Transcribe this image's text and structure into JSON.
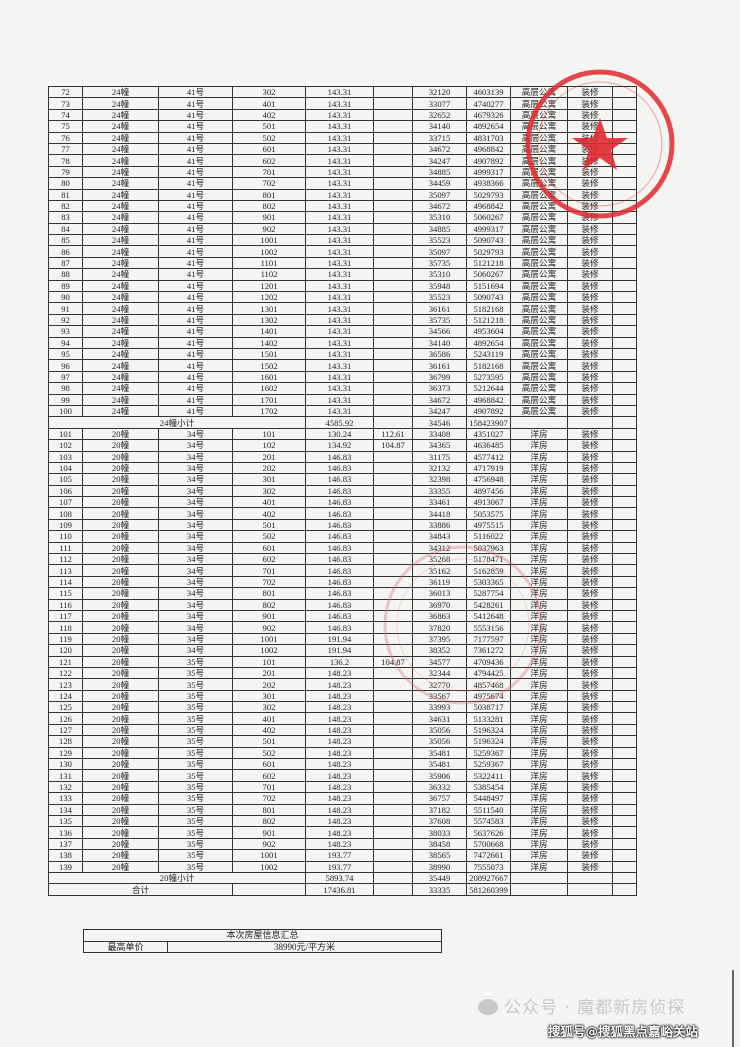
{
  "table": {
    "rows": [
      [
        "72",
        "24幢",
        "41号",
        "302",
        "143.31",
        "",
        "32120",
        "4603139",
        "高层公寓",
        "装修",
        ""
      ],
      [
        "73",
        "24幢",
        "41号",
        "401",
        "143.31",
        "",
        "33077",
        "4740277",
        "高层公寓",
        "装修",
        ""
      ],
      [
        "74",
        "24幢",
        "41号",
        "402",
        "143.31",
        "",
        "32652",
        "4679326",
        "高层公寓",
        "装修",
        ""
      ],
      [
        "75",
        "24幢",
        "41号",
        "501",
        "143.31",
        "",
        "34140",
        "4892654",
        "高层公寓",
        "装修",
        ""
      ],
      [
        "76",
        "24幢",
        "41号",
        "502",
        "143.31",
        "",
        "33715",
        "4831703",
        "高层公寓",
        "装修",
        ""
      ],
      [
        "77",
        "24幢",
        "41号",
        "601",
        "143.31",
        "",
        "34672",
        "4968842",
        "高层公寓",
        "装修",
        ""
      ],
      [
        "78",
        "24幢",
        "41号",
        "602",
        "143.31",
        "",
        "34247",
        "4907892",
        "高层公寓",
        "装修",
        ""
      ],
      [
        "79",
        "24幢",
        "41号",
        "701",
        "143.31",
        "",
        "34885",
        "4999317",
        "高层公寓",
        "装修",
        ""
      ],
      [
        "80",
        "24幢",
        "41号",
        "702",
        "143.31",
        "",
        "34459",
        "4938366",
        "高层公寓",
        "装修",
        ""
      ],
      [
        "81",
        "24幢",
        "41号",
        "801",
        "143.31",
        "",
        "35097",
        "5029793",
        "高层公寓",
        "装修",
        ""
      ],
      [
        "82",
        "24幢",
        "41号",
        "802",
        "143.31",
        "",
        "34672",
        "4968842",
        "高层公寓",
        "装修",
        ""
      ],
      [
        "83",
        "24幢",
        "41号",
        "901",
        "143.31",
        "",
        "35310",
        "5060267",
        "高层公寓",
        "装修",
        ""
      ],
      [
        "84",
        "24幢",
        "41号",
        "902",
        "143.31",
        "",
        "34885",
        "4999317",
        "高层公寓",
        "装修",
        ""
      ],
      [
        "85",
        "24幢",
        "41号",
        "1001",
        "143.31",
        "",
        "35523",
        "5090743",
        "高层公寓",
        "装修",
        ""
      ],
      [
        "86",
        "24幢",
        "41号",
        "1002",
        "143.31",
        "",
        "35097",
        "5029793",
        "高层公寓",
        "装修",
        ""
      ],
      [
        "87",
        "24幢",
        "41号",
        "1101",
        "143.31",
        "",
        "35735",
        "5121218",
        "高层公寓",
        "装修",
        ""
      ],
      [
        "88",
        "24幢",
        "41号",
        "1102",
        "143.31",
        "",
        "35310",
        "5060267",
        "高层公寓",
        "装修",
        ""
      ],
      [
        "89",
        "24幢",
        "41号",
        "1201",
        "143.31",
        "",
        "35948",
        "5151694",
        "高层公寓",
        "装修",
        ""
      ],
      [
        "90",
        "24幢",
        "41号",
        "1202",
        "143.31",
        "",
        "35523",
        "5090743",
        "高层公寓",
        "装修",
        ""
      ],
      [
        "91",
        "24幢",
        "41号",
        "1301",
        "143.31",
        "",
        "36161",
        "5182168",
        "高层公寓",
        "装修",
        ""
      ],
      [
        "92",
        "24幢",
        "41号",
        "1302",
        "143.31",
        "",
        "35735",
        "5121218",
        "高层公寓",
        "装修",
        ""
      ],
      [
        "93",
        "24幢",
        "41号",
        "1401",
        "143.31",
        "",
        "34566",
        "4953604",
        "高层公寓",
        "装修",
        ""
      ],
      [
        "94",
        "24幢",
        "41号",
        "1402",
        "143.31",
        "",
        "34140",
        "4892654",
        "高层公寓",
        "装修",
        ""
      ],
      [
        "95",
        "24幢",
        "41号",
        "1501",
        "143.31",
        "",
        "36586",
        "5243119",
        "高层公寓",
        "装修",
        ""
      ],
      [
        "96",
        "24幢",
        "41号",
        "1502",
        "143.31",
        "",
        "36161",
        "5182168",
        "高层公寓",
        "装修",
        ""
      ],
      [
        "97",
        "24幢",
        "41号",
        "1601",
        "143.31",
        "",
        "36799",
        "5273595",
        "高层公寓",
        "装修",
        ""
      ],
      [
        "98",
        "24幢",
        "41号",
        "1602",
        "143.31",
        "",
        "36373",
        "5212644",
        "高层公寓",
        "装修",
        ""
      ],
      [
        "99",
        "24幢",
        "41号",
        "1701",
        "143.31",
        "",
        "34672",
        "4968842",
        "高层公寓",
        "装修",
        ""
      ],
      [
        "100",
        "24幢",
        "41号",
        "1702",
        "143.31",
        "",
        "34247",
        "4907892",
        "高层公寓",
        "装修",
        ""
      ],
      {
        "subtotal": "24幢小计",
        "area": "4585.92",
        "price": "34546",
        "total": "158423907"
      },
      [
        "101",
        "20幢",
        "34号",
        "101",
        "130.24",
        "112.61",
        "33408",
        "4351027",
        "洋房",
        "装修",
        ""
      ],
      [
        "102",
        "20幢",
        "34号",
        "102",
        "134.92",
        "104.87",
        "34365",
        "4636485",
        "洋房",
        "装修",
        ""
      ],
      [
        "103",
        "20幢",
        "34号",
        "201",
        "146.83",
        "",
        "31175",
        "4577412",
        "洋房",
        "装修",
        ""
      ],
      [
        "104",
        "20幢",
        "34号",
        "202",
        "146.83",
        "",
        "32132",
        "4717919",
        "洋房",
        "装修",
        ""
      ],
      [
        "105",
        "20幢",
        "34号",
        "301",
        "146.83",
        "",
        "32398",
        "4756948",
        "洋房",
        "装修",
        ""
      ],
      [
        "106",
        "20幢",
        "34号",
        "302",
        "146.83",
        "",
        "33355",
        "4897456",
        "洋房",
        "装修",
        ""
      ],
      [
        "107",
        "20幢",
        "34号",
        "401",
        "146.83",
        "",
        "33461",
        "4913067",
        "洋房",
        "装修",
        ""
      ],
      [
        "108",
        "20幢",
        "34号",
        "402",
        "146.83",
        "",
        "34418",
        "5053575",
        "洋房",
        "装修",
        ""
      ],
      [
        "109",
        "20幢",
        "34号",
        "501",
        "146.83",
        "",
        "33886",
        "4975515",
        "洋房",
        "装修",
        ""
      ],
      [
        "110",
        "20幢",
        "34号",
        "502",
        "146.83",
        "",
        "34843",
        "5116022",
        "洋房",
        "装修",
        ""
      ],
      [
        "111",
        "20幢",
        "34号",
        "601",
        "146.83",
        "",
        "34312",
        "5037963",
        "洋房",
        "装修",
        ""
      ],
      [
        "112",
        "20幢",
        "34号",
        "602",
        "146.83",
        "",
        "35268",
        "5178471",
        "洋房",
        "装修",
        ""
      ],
      [
        "113",
        "20幢",
        "34号",
        "701",
        "146.83",
        "",
        "35162",
        "5162859",
        "洋房",
        "装修",
        ""
      ],
      [
        "114",
        "20幢",
        "34号",
        "702",
        "146.83",
        "",
        "36119",
        "5303365",
        "洋房",
        "装修",
        ""
      ],
      [
        "115",
        "20幢",
        "34号",
        "801",
        "146.83",
        "",
        "36013",
        "5287754",
        "洋房",
        "装修",
        ""
      ],
      [
        "116",
        "20幢",
        "34号",
        "802",
        "146.83",
        "",
        "36970",
        "5428261",
        "洋房",
        "装修",
        ""
      ],
      [
        "117",
        "20幢",
        "34号",
        "901",
        "146.83",
        "",
        "36863",
        "5412648",
        "洋房",
        "装修",
        ""
      ],
      [
        "118",
        "20幢",
        "34号",
        "902",
        "146.83",
        "",
        "37820",
        "5553156",
        "洋房",
        "装修",
        ""
      ],
      [
        "119",
        "20幢",
        "34号",
        "1001",
        "191.94",
        "",
        "37395",
        "7177597",
        "洋房",
        "装修",
        ""
      ],
      [
        "120",
        "20幢",
        "34号",
        "1002",
        "191.94",
        "",
        "38352",
        "7361272",
        "洋房",
        "装修",
        ""
      ],
      [
        "121",
        "20幢",
        "35号",
        "101",
        "136.2",
        "104.87",
        "34577",
        "4709436",
        "洋房",
        "装修",
        ""
      ],
      [
        "122",
        "20幢",
        "35号",
        "201",
        "148.23",
        "",
        "32344",
        "4794425",
        "洋房",
        "装修",
        ""
      ],
      [
        "123",
        "20幢",
        "35号",
        "202",
        "148.23",
        "",
        "32770",
        "4857468",
        "洋房",
        "装修",
        ""
      ],
      [
        "124",
        "20幢",
        "35号",
        "301",
        "148.23",
        "",
        "33567",
        "4975674",
        "洋房",
        "装修",
        ""
      ],
      [
        "125",
        "20幢",
        "35号",
        "302",
        "148.23",
        "",
        "33993",
        "5038717",
        "洋房",
        "装修",
        ""
      ],
      [
        "126",
        "20幢",
        "35号",
        "401",
        "148.23",
        "",
        "34631",
        "5133281",
        "洋房",
        "装修",
        ""
      ],
      [
        "127",
        "20幢",
        "35号",
        "402",
        "148.23",
        "",
        "35056",
        "5196324",
        "洋房",
        "装修",
        ""
      ],
      [
        "128",
        "20幢",
        "35号",
        "501",
        "148.23",
        "",
        "35056",
        "5196324",
        "洋房",
        "装修",
        ""
      ],
      [
        "129",
        "20幢",
        "35号",
        "502",
        "148.23",
        "",
        "35481",
        "5259367",
        "洋房",
        "装修",
        ""
      ],
      [
        "130",
        "20幢",
        "35号",
        "601",
        "148.23",
        "",
        "35481",
        "5259367",
        "洋房",
        "装修",
        ""
      ],
      [
        "131",
        "20幢",
        "35号",
        "602",
        "148.23",
        "",
        "35906",
        "5322411",
        "洋房",
        "装修",
        ""
      ],
      [
        "132",
        "20幢",
        "35号",
        "701",
        "148.23",
        "",
        "36332",
        "5385454",
        "洋房",
        "装修",
        ""
      ],
      [
        "133",
        "20幢",
        "35号",
        "702",
        "148.23",
        "",
        "36757",
        "5448497",
        "洋房",
        "装修",
        ""
      ],
      [
        "134",
        "20幢",
        "35号",
        "801",
        "148.23",
        "",
        "37182",
        "5511540",
        "洋房",
        "装修",
        ""
      ],
      [
        "135",
        "20幢",
        "35号",
        "802",
        "148.23",
        "",
        "37608",
        "5574583",
        "洋房",
        "装修",
        ""
      ],
      [
        "136",
        "20幢",
        "35号",
        "901",
        "148.23",
        "",
        "38033",
        "5637626",
        "洋房",
        "装修",
        ""
      ],
      [
        "137",
        "20幢",
        "35号",
        "902",
        "148.23",
        "",
        "38458",
        "5700668",
        "洋房",
        "装修",
        ""
      ],
      [
        "138",
        "20幢",
        "35号",
        "1001",
        "193.77",
        "",
        "38565",
        "7472661",
        "洋房",
        "装修",
        ""
      ],
      [
        "139",
        "20幢",
        "35号",
        "1002",
        "193.77",
        "",
        "38990",
        "7555073",
        "洋房",
        "装修",
        ""
      ],
      {
        "subtotal": "20幢小计",
        "area": "5893.74",
        "price": "35449",
        "total": "208927667"
      }
    ],
    "grand_total": {
      "label": "合计",
      "area": "17436.81",
      "price": "33335",
      "total": "581260399"
    }
  },
  "summary": {
    "title": "本次房屋信息汇总",
    "label": "最高单价",
    "value": "38990元/平方米"
  },
  "watermark": {
    "wechat": "公众号 · 魔都新房侦探",
    "sohu": "搜狐号@搜狐黑点嘉峪关站",
    "icon": "wechat-icon"
  },
  "colors": {
    "stamp": "#e0292f",
    "ink": "#222222"
  }
}
